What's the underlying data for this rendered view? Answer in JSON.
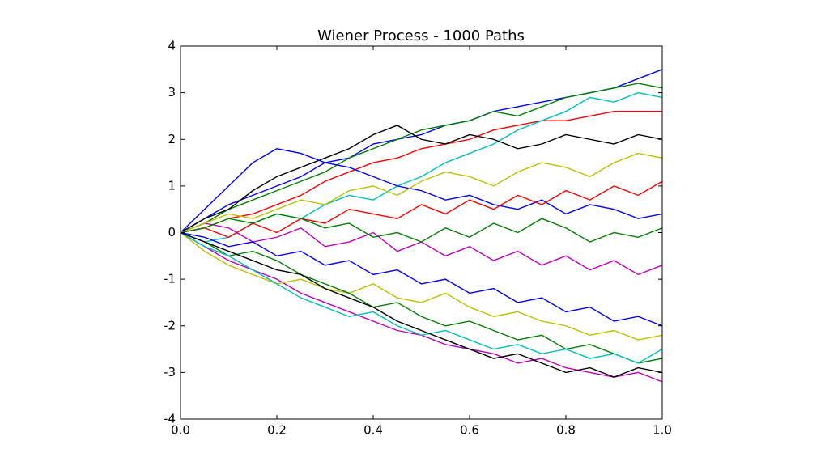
{
  "chart_data": {
    "type": "line",
    "title": "Wiener Process - 1000 Paths",
    "x": [
      0,
      0.05,
      0.1,
      0.15,
      0.2,
      0.25,
      0.3,
      0.35,
      0.4,
      0.45,
      0.5,
      0.55,
      0.6,
      0.65,
      0.7,
      0.75,
      0.8,
      0.85,
      0.9,
      0.95,
      1.0
    ],
    "xlim": [
      0,
      1
    ],
    "ylim": [
      -4,
      4
    ],
    "xticks": [
      {
        "value": 0,
        "label": "0.0"
      },
      {
        "value": 0.2,
        "label": "0.2"
      },
      {
        "value": 0.4,
        "label": "0.4"
      },
      {
        "value": 0.6,
        "label": "0.6"
      },
      {
        "value": 0.8,
        "label": "0.8"
      },
      {
        "value": 1,
        "label": "1.0"
      }
    ],
    "yticks": [
      -4,
      -3,
      -2,
      -1,
      0,
      1,
      2,
      3,
      4
    ],
    "grid": false,
    "series": [
      {
        "color": "#0000ff",
        "values": [
          0,
          0.3,
          0.6,
          0.8,
          1.0,
          1.2,
          1.5,
          1.6,
          1.9,
          2.0,
          2.1,
          2.3,
          2.4,
          2.6,
          2.7,
          2.8,
          2.9,
          3.0,
          3.1,
          3.3,
          3.5
        ]
      },
      {
        "color": "#008000",
        "values": [
          0,
          0.2,
          0.5,
          0.7,
          0.9,
          1.1,
          1.3,
          1.6,
          1.8,
          2.0,
          2.2,
          2.3,
          2.4,
          2.6,
          2.5,
          2.7,
          2.9,
          3.0,
          3.1,
          3.2,
          3.1
        ]
      },
      {
        "color": "#ff0000",
        "values": [
          0,
          0.1,
          0.3,
          0.4,
          0.6,
          0.8,
          1.1,
          1.3,
          1.5,
          1.6,
          1.8,
          1.9,
          2.0,
          2.2,
          2.3,
          2.4,
          2.4,
          2.5,
          2.6,
          2.6,
          2.6
        ]
      },
      {
        "color": "#00bfbf",
        "values": [
          0,
          -0.2,
          -0.1,
          0.2,
          0.4,
          0.3,
          0.6,
          0.8,
          0.7,
          1.0,
          1.2,
          1.5,
          1.7,
          1.9,
          2.2,
          2.4,
          2.6,
          2.9,
          2.8,
          3.0,
          2.9
        ]
      },
      {
        "color": "#bf00bf",
        "values": [
          0,
          -0.3,
          -0.6,
          -0.8,
          -1.0,
          -1.3,
          -1.5,
          -1.7,
          -1.9,
          -2.1,
          -2.2,
          -2.4,
          -2.5,
          -2.6,
          -2.8,
          -2.7,
          -2.9,
          -3.0,
          -3.1,
          -3.0,
          -3.2
        ]
      },
      {
        "color": "#bfbf00",
        "values": [
          0,
          -0.4,
          -0.7,
          -0.9,
          -1.1,
          -1.0,
          -1.2,
          -1.3,
          -1.1,
          -1.4,
          -1.5,
          -1.3,
          -1.6,
          -1.8,
          -1.7,
          -1.9,
          -2.0,
          -2.2,
          -2.1,
          -2.3,
          -2.2
        ]
      },
      {
        "color": "#000000",
        "values": [
          0,
          0.3,
          0.5,
          0.9,
          1.2,
          1.4,
          1.6,
          1.8,
          2.1,
          2.3,
          2.0,
          1.9,
          2.1,
          2.0,
          1.8,
          1.9,
          2.1,
          2.0,
          1.9,
          2.1,
          2.0
        ]
      },
      {
        "color": "#0000ff",
        "values": [
          0,
          0.5,
          1.0,
          1.5,
          1.8,
          1.7,
          1.5,
          1.4,
          1.2,
          1.0,
          0.9,
          0.7,
          0.8,
          0.6,
          0.5,
          0.7,
          0.4,
          0.6,
          0.5,
          0.3,
          0.4
        ]
      },
      {
        "color": "#008000",
        "values": [
          0,
          -0.2,
          -0.5,
          -0.4,
          -0.6,
          -0.9,
          -1.1,
          -1.3,
          -1.6,
          -1.5,
          -1.8,
          -2.0,
          -1.9,
          -2.1,
          -2.3,
          -2.2,
          -2.5,
          -2.4,
          -2.6,
          -2.8,
          -2.7
        ]
      },
      {
        "color": "#ff0000",
        "values": [
          0,
          0.1,
          -0.1,
          0.2,
          0.0,
          0.3,
          0.2,
          0.5,
          0.4,
          0.3,
          0.6,
          0.4,
          0.7,
          0.5,
          0.8,
          0.6,
          0.9,
          0.7,
          1.0,
          0.8,
          1.1
        ]
      },
      {
        "color": "#00bfbf",
        "values": [
          0,
          -0.3,
          -0.5,
          -0.8,
          -1.1,
          -1.4,
          -1.6,
          -1.8,
          -1.7,
          -2.0,
          -2.2,
          -2.1,
          -2.3,
          -2.5,
          -2.4,
          -2.6,
          -2.5,
          -2.7,
          -2.6,
          -2.8,
          -2.5
        ]
      },
      {
        "color": "#bf00bf",
        "values": [
          0,
          0.2,
          0.1,
          -0.2,
          -0.1,
          0.1,
          -0.3,
          -0.2,
          0.0,
          -0.4,
          -0.2,
          -0.5,
          -0.3,
          -0.6,
          -0.4,
          -0.7,
          -0.5,
          -0.8,
          -0.6,
          -0.9,
          -0.7
        ]
      },
      {
        "color": "#000000",
        "values": [
          0,
          -0.2,
          -0.4,
          -0.6,
          -0.8,
          -0.9,
          -1.2,
          -1.4,
          -1.6,
          -1.9,
          -2.1,
          -2.3,
          -2.5,
          -2.7,
          -2.6,
          -2.8,
          -3.0,
          -2.9,
          -3.1,
          -2.9,
          -3.0
        ]
      },
      {
        "color": "#bfbf00",
        "values": [
          0,
          0.2,
          0.4,
          0.3,
          0.5,
          0.7,
          0.6,
          0.9,
          1.0,
          0.8,
          1.1,
          1.3,
          1.2,
          1.0,
          1.3,
          1.5,
          1.4,
          1.2,
          1.5,
          1.7,
          1.6
        ]
      },
      {
        "color": "#0000ff",
        "values": [
          0,
          -0.1,
          -0.3,
          -0.2,
          -0.5,
          -0.4,
          -0.7,
          -0.6,
          -0.9,
          -0.8,
          -1.1,
          -1.0,
          -1.3,
          -1.2,
          -1.5,
          -1.4,
          -1.7,
          -1.6,
          -1.9,
          -1.8,
          -2.0
        ]
      },
      {
        "color": "#008000",
        "values": [
          0,
          0.1,
          0.3,
          0.2,
          0.4,
          0.3,
          0.1,
          0.2,
          -0.1,
          0.0,
          -0.2,
          0.1,
          -0.1,
          0.2,
          0.0,
          0.3,
          0.1,
          -0.2,
          0.0,
          -0.1,
          0.1
        ]
      }
    ]
  }
}
